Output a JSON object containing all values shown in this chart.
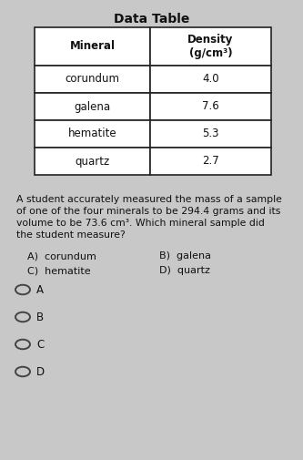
{
  "title": "Data Table",
  "table_headers": [
    "Mineral",
    "Density\n(g/cm³)"
  ],
  "table_rows": [
    [
      "corundum",
      "4.0"
    ],
    [
      "galena",
      "7.6"
    ],
    [
      "hematite",
      "5.3"
    ],
    [
      "quartz",
      "2.7"
    ]
  ],
  "question_line1": "A student accurately measured the mass of a sample",
  "question_line2": "of one of the four minerals to be 294.4 grams and its",
  "question_line3": "volume to be 73.6 cm³. Which mineral sample did",
  "question_line4": "the student measure?",
  "ans_A": "A)  corundum",
  "ans_B": "B)  galena",
  "ans_C": "C)  hematite",
  "ans_D": "D)  quartz",
  "radio_labels": [
    "A",
    "B",
    "C",
    "D"
  ],
  "bg_color": "#c8c8c8",
  "cell_color": "#ffffff",
  "header_color": "#ffffff",
  "text_color": "#111111",
  "border_color": "#222222",
  "title_fontsize": 10,
  "header_fontsize": 8.5,
  "cell_fontsize": 8.5,
  "question_fontsize": 7.8,
  "ans_fontsize": 8.0,
  "radio_fontsize": 8.5
}
